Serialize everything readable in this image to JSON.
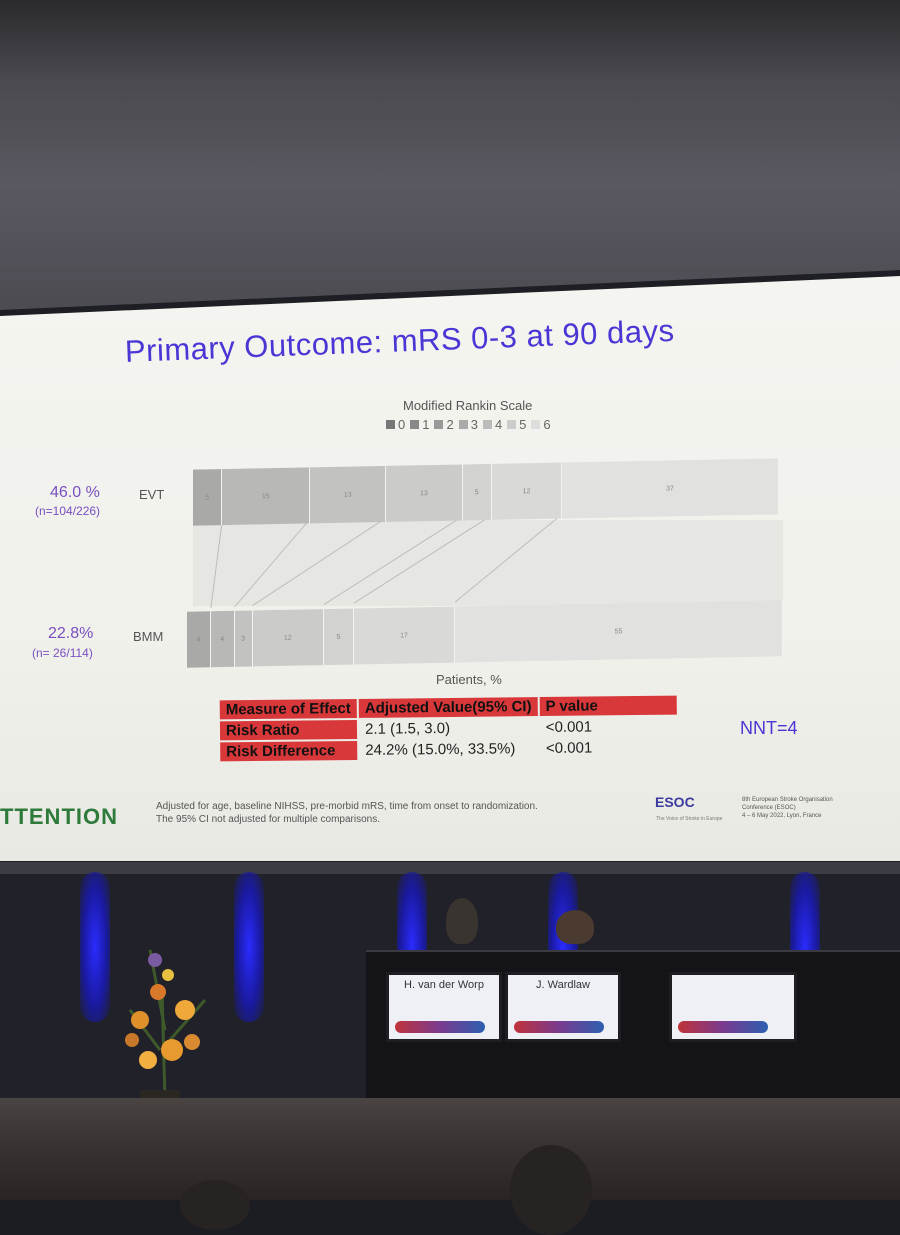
{
  "slide": {
    "title": "Primary Outcome: mRS 0-3 at 90 days",
    "footnote_1": "Adjusted for age, baseline NIHSS, pre-morbid mRS, time from onset to randomization.",
    "footnote_2": "The 95% CI not adjusted for multiple comparisons.",
    "logo_text": "TTENTION",
    "nnt": "NNT=4"
  },
  "chart_data": {
    "type": "bar",
    "orientation": "horizontal-stacked",
    "title": "Modified Rankin Scale",
    "xlabel": "Patients, %",
    "legend_label": "0",
    "legend": [
      "0",
      "1",
      "2",
      "3",
      "4",
      "5",
      "6"
    ],
    "legend_position": "top",
    "categories": [
      "EVT",
      "BMM"
    ],
    "rows": [
      {
        "label": "EVT",
        "percent": "46.0 %",
        "n": "(n=104/226)",
        "values": [
          5,
          15,
          13,
          13,
          5,
          12,
          37
        ]
      },
      {
        "label": "BMM",
        "percent": "22.8%",
        "n": "(n= 26/114)",
        "values": [
          4,
          4,
          3,
          12,
          5,
          17,
          55
        ]
      }
    ],
    "colors": [
      "#a9a9a7",
      "#b8b8b6",
      "#c2c2c0",
      "#cbcbc9",
      "#d2d2d0",
      "#d9d9d7",
      "#e1e1df"
    ]
  },
  "effect_table": {
    "headers": [
      "Measure of Effect",
      "Adjusted Value(95% CI)",
      "P value"
    ],
    "rows": [
      {
        "measure": "Risk Ratio",
        "value": "2.1 (1.5, 3.0)",
        "p": "<0.001"
      },
      {
        "measure": "Risk Difference",
        "value": "24.2% (15.0%, 33.5%)",
        "p": "<0.001"
      }
    ]
  },
  "conference": {
    "badge": "ESOC",
    "tagline": "The Voice of Stroke in Europe",
    "info_1": "8th European Stroke Organisation",
    "info_2": "Conference (ESOC)",
    "info_3": "4 – 6 May 2022, Lyon, France"
  },
  "stage": {
    "nameplates": [
      "H. van der Worp",
      "J. Wardlaw",
      ""
    ]
  },
  "colors": {
    "title": "#4a36d4",
    "table_header": "#d9383a",
    "subgroup_text": "#7a4fc0",
    "stage_light": "#2b2bff"
  }
}
